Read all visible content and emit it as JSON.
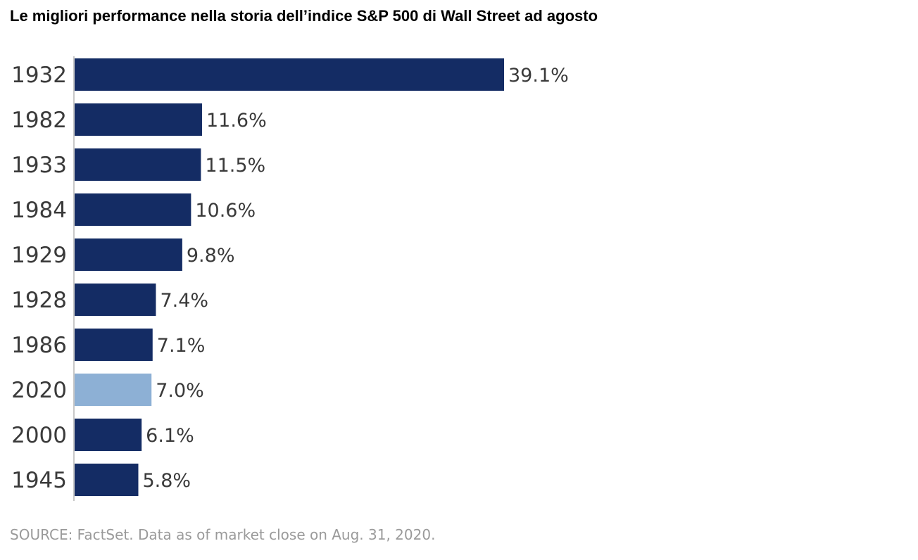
{
  "chart_data": {
    "type": "bar",
    "orientation": "horizontal",
    "title": "Le migliori performance nella storia dell’indice S&P 500 di Wall Street ad agosto",
    "categories": [
      "1932",
      "1982",
      "1933",
      "1984",
      "1929",
      "1928",
      "1986",
      "2020",
      "2000",
      "1945"
    ],
    "values": [
      39.1,
      11.6,
      11.5,
      10.6,
      9.8,
      7.4,
      7.1,
      7.0,
      6.1,
      5.8
    ],
    "value_labels": [
      "39.1%",
      "11.6%",
      "11.5%",
      "10.6%",
      "9.8%",
      "7.4%",
      "7.1%",
      "7.0%",
      "6.1%",
      "5.8%"
    ],
    "highlight_category": "2020",
    "colors": {
      "bar": "#142c64",
      "highlight_bar": "#8db0d5",
      "axis": "#c8c8c8"
    },
    "xlim": [
      0,
      39.1
    ],
    "grid": false,
    "legend": "none",
    "source": "SOURCE: FactSet. Data as of market close on Aug. 31, 2020."
  }
}
